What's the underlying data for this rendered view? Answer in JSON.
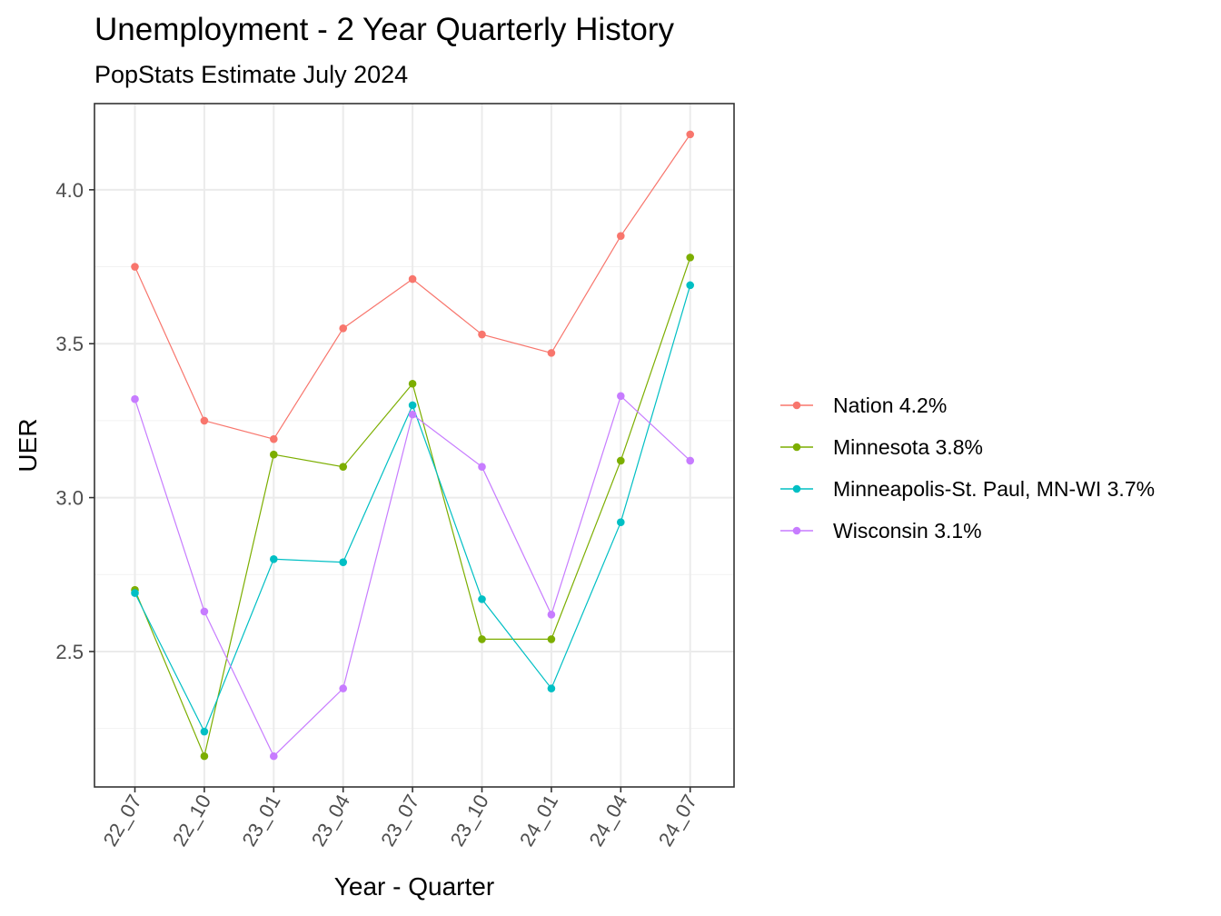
{
  "chart_data": {
    "type": "line",
    "title": "Unemployment - 2 Year Quarterly History",
    "subtitle": "PopStats Estimate July 2024",
    "xlabel": "Year - Quarter",
    "ylabel": "UER",
    "categories": [
      "22_07",
      "22_10",
      "23_01",
      "23_04",
      "23_07",
      "23_10",
      "24_01",
      "24_04",
      "24_07"
    ],
    "ylim": [
      2.06,
      4.28
    ],
    "yticks": [
      2.5,
      3.0,
      3.5,
      4.0
    ],
    "ytick_labels": [
      "2.5",
      "3.0",
      "3.5",
      "4.0"
    ],
    "yminor": [
      2.25,
      2.75,
      3.25,
      3.75
    ],
    "grid": true,
    "legend_position": "right",
    "series": [
      {
        "name": "Nation 4.2%",
        "color": "#F8766D",
        "values": [
          3.75,
          3.25,
          3.19,
          3.55,
          3.71,
          3.53,
          3.47,
          3.85,
          4.18
        ]
      },
      {
        "name": "Minnesota 3.8%",
        "color": "#7CAE00",
        "values": [
          2.7,
          2.16,
          3.14,
          3.1,
          3.37,
          2.54,
          2.54,
          3.12,
          3.78
        ]
      },
      {
        "name": "Minneapolis-St. Paul, MN-WI 3.7%",
        "color": "#00BFC4",
        "values": [
          2.69,
          2.24,
          2.8,
          2.79,
          3.3,
          2.67,
          2.38,
          2.92,
          3.69
        ]
      },
      {
        "name": "Wisconsin 3.1%",
        "color": "#C77CFF",
        "values": [
          3.32,
          2.63,
          2.16,
          2.38,
          3.27,
          3.1,
          2.62,
          3.33,
          3.12
        ]
      }
    ]
  }
}
